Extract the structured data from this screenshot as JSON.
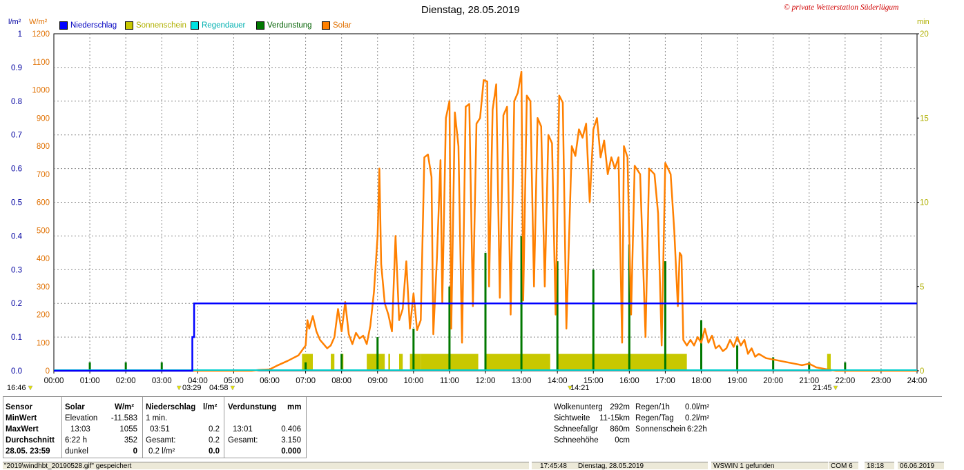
{
  "title": "Dienstag, 28.05.2019",
  "copyright": "© private Wetterstation Süderlügum",
  "axes": {
    "left1_unit": "l/m²",
    "left2_unit": "W/m²",
    "right_unit": "min",
    "left1_ticks": [
      "0.0",
      "0.1",
      "0.2",
      "0.3",
      "0.4",
      "0.5",
      "0.6",
      "0.7",
      "0.8",
      "0.9",
      "1"
    ],
    "left2_ticks": [
      "0",
      "100",
      "200",
      "300",
      "400",
      "500",
      "600",
      "700",
      "800",
      "900",
      "1000",
      "1100",
      "1200"
    ],
    "right_ticks": [
      "0",
      "5",
      "10",
      "15",
      "20"
    ],
    "x_ticks": [
      "00:00",
      "01:00",
      "02:00",
      "03:00",
      "04:00",
      "05:00",
      "06:00",
      "07:00",
      "08:00",
      "09:00",
      "10:00",
      "11:00",
      "12:00",
      "13:00",
      "14:00",
      "15:00",
      "16:00",
      "17:00",
      "18:00",
      "19:00",
      "20:00",
      "21:00",
      "22:00",
      "23:00",
      "24:00"
    ]
  },
  "legend": [
    {
      "label": "Niederschlag",
      "color": "#0000ff"
    },
    {
      "label": "Sonnenschein",
      "color": "#c8c800"
    },
    {
      "label": "Regendauer",
      "color": "#00e0e0"
    },
    {
      "label": "Verdunstung",
      "color": "#007800"
    },
    {
      "label": "Solar",
      "color": "#ff8000"
    }
  ],
  "markers": {
    "sunset_prev": "16:46",
    "t1": "03:29",
    "t2": "04:58",
    "t3": "14:21",
    "t4": "21:45"
  },
  "chart_data": {
    "type": "line",
    "x_unit": "hours",
    "xlim": [
      0,
      24
    ],
    "series": [
      {
        "name": "Solar",
        "axis": "W/m²",
        "ylim": [
          0,
          1200
        ],
        "points": [
          [
            0,
            0
          ],
          [
            5.5,
            0
          ],
          [
            5.7,
            3
          ],
          [
            6.0,
            5
          ],
          [
            6.2,
            18
          ],
          [
            6.5,
            35
          ],
          [
            6.8,
            55
          ],
          [
            7.0,
            90
          ],
          [
            7.05,
            180
          ],
          [
            7.1,
            150
          ],
          [
            7.2,
            195
          ],
          [
            7.3,
            140
          ],
          [
            7.4,
            110
          ],
          [
            7.5,
            95
          ],
          [
            7.6,
            80
          ],
          [
            7.7,
            90
          ],
          [
            7.8,
            120
          ],
          [
            7.9,
            220
          ],
          [
            8.0,
            140
          ],
          [
            8.1,
            245
          ],
          [
            8.2,
            130
          ],
          [
            8.3,
            95
          ],
          [
            8.4,
            135
          ],
          [
            8.5,
            115
          ],
          [
            8.6,
            125
          ],
          [
            8.7,
            95
          ],
          [
            8.8,
            160
          ],
          [
            8.9,
            280
          ],
          [
            9.0,
            480
          ],
          [
            9.05,
            720
          ],
          [
            9.1,
            380
          ],
          [
            9.2,
            240
          ],
          [
            9.3,
            200
          ],
          [
            9.4,
            140
          ],
          [
            9.5,
            480
          ],
          [
            9.6,
            180
          ],
          [
            9.7,
            220
          ],
          [
            9.8,
            390
          ],
          [
            9.9,
            150
          ],
          [
            10.0,
            275
          ],
          [
            10.1,
            145
          ],
          [
            10.2,
            180
          ],
          [
            10.3,
            760
          ],
          [
            10.4,
            770
          ],
          [
            10.5,
            690
          ],
          [
            10.55,
            130
          ],
          [
            10.65,
            400
          ],
          [
            10.75,
            750
          ],
          [
            10.8,
            240
          ],
          [
            10.9,
            900
          ],
          [
            11.0,
            960
          ],
          [
            11.05,
            150
          ],
          [
            11.15,
            920
          ],
          [
            11.25,
            800
          ],
          [
            11.35,
            100
          ],
          [
            11.45,
            940
          ],
          [
            11.55,
            950
          ],
          [
            11.65,
            230
          ],
          [
            11.75,
            880
          ],
          [
            11.85,
            900
          ],
          [
            11.95,
            1035
          ],
          [
            12.05,
            1030
          ],
          [
            12.1,
            300
          ],
          [
            12.2,
            930
          ],
          [
            12.3,
            1020
          ],
          [
            12.4,
            260
          ],
          [
            12.5,
            910
          ],
          [
            12.6,
            940
          ],
          [
            12.7,
            200
          ],
          [
            12.8,
            960
          ],
          [
            12.9,
            990
          ],
          [
            13.0,
            1065
          ],
          [
            13.05,
            250
          ],
          [
            13.15,
            980
          ],
          [
            13.25,
            960
          ],
          [
            13.35,
            300
          ],
          [
            13.45,
            900
          ],
          [
            13.55,
            870
          ],
          [
            13.65,
            300
          ],
          [
            13.75,
            840
          ],
          [
            13.85,
            810
          ],
          [
            13.95,
            200
          ],
          [
            14.05,
            980
          ],
          [
            14.15,
            955
          ],
          [
            14.25,
            150
          ],
          [
            14.4,
            800
          ],
          [
            14.5,
            765
          ],
          [
            14.6,
            860
          ],
          [
            14.7,
            830
          ],
          [
            14.8,
            880
          ],
          [
            14.9,
            600
          ],
          [
            15.0,
            860
          ],
          [
            15.1,
            900
          ],
          [
            15.2,
            760
          ],
          [
            15.3,
            820
          ],
          [
            15.4,
            700
          ],
          [
            15.5,
            760
          ],
          [
            15.6,
            720
          ],
          [
            15.7,
            760
          ],
          [
            15.8,
            100
          ],
          [
            15.85,
            800
          ],
          [
            15.95,
            760
          ],
          [
            16.05,
            200
          ],
          [
            16.15,
            730
          ],
          [
            16.3,
            700
          ],
          [
            16.45,
            120
          ],
          [
            16.55,
            720
          ],
          [
            16.7,
            700
          ],
          [
            16.8,
            560
          ],
          [
            16.9,
            90
          ],
          [
            17.0,
            740
          ],
          [
            17.15,
            700
          ],
          [
            17.25,
            500
          ],
          [
            17.35,
            230
          ],
          [
            17.4,
            420
          ],
          [
            17.45,
            410
          ],
          [
            17.5,
            110
          ],
          [
            17.6,
            90
          ],
          [
            17.7,
            110
          ],
          [
            17.8,
            90
          ],
          [
            17.9,
            120
          ],
          [
            18.0,
            100
          ],
          [
            18.1,
            150
          ],
          [
            18.2,
            100
          ],
          [
            18.3,
            125
          ],
          [
            18.4,
            80
          ],
          [
            18.5,
            90
          ],
          [
            18.6,
            70
          ],
          [
            18.7,
            80
          ],
          [
            18.8,
            110
          ],
          [
            18.9,
            85
          ],
          [
            19.0,
            120
          ],
          [
            19.1,
            90
          ],
          [
            19.2,
            110
          ],
          [
            19.3,
            60
          ],
          [
            19.4,
            80
          ],
          [
            19.5,
            50
          ],
          [
            19.6,
            60
          ],
          [
            19.8,
            45
          ],
          [
            20.0,
            40
          ],
          [
            20.2,
            35
          ],
          [
            20.4,
            30
          ],
          [
            20.6,
            25
          ],
          [
            20.8,
            20
          ],
          [
            21.0,
            25
          ],
          [
            21.2,
            12
          ],
          [
            21.5,
            5
          ],
          [
            21.75,
            0
          ],
          [
            24,
            0
          ]
        ]
      },
      {
        "name": "Niederschlag",
        "axis": "l/m²",
        "ylim": [
          0,
          1
        ],
        "points": [
          [
            0,
            0
          ],
          [
            3.85,
            0
          ],
          [
            3.85,
            0.1
          ],
          [
            3.9,
            0.1
          ],
          [
            3.9,
            0.2
          ],
          [
            24,
            0.2
          ]
        ]
      },
      {
        "name": "Verdunstung",
        "axis": "min",
        "type": "bar",
        "ylim": [
          0,
          20
        ],
        "x": [
          1.0,
          2.0,
          3.0,
          7.0,
          8.0,
          9.0,
          10.0,
          11.0,
          12.0,
          13.0,
          14.0,
          15.0,
          16.0,
          17.0,
          18.0,
          19.0,
          20.0,
          21.0,
          22.0
        ],
        "values": [
          0.5,
          0.5,
          0.5,
          0.5,
          1.0,
          2.0,
          2.5,
          5.0,
          7.0,
          8.0,
          6.5,
          6.0,
          7.5,
          6.5,
          3.0,
          1.5,
          0.8,
          0.5,
          0.5
        ]
      },
      {
        "name": "Sonnenschein",
        "axis": "min",
        "type": "bar",
        "ylim": [
          0,
          20
        ],
        "segments": [
          [
            6.9,
            7.2
          ],
          [
            7.7,
            7.8
          ],
          [
            8.0,
            8.05
          ],
          [
            8.7,
            9.2
          ],
          [
            9.3,
            9.35
          ],
          [
            9.6,
            9.7
          ],
          [
            9.9,
            10.2
          ],
          [
            10.2,
            11.8
          ],
          [
            12.0,
            13.8
          ],
          [
            14.0,
            17.6
          ],
          [
            21.5,
            21.6
          ]
        ],
        "value": 1
      }
    ]
  },
  "stats": {
    "headers": {
      "sensor": "Sensor",
      "solar": "Solar",
      "solar_unit": "W/m²",
      "niederschlag": "Niederschlag",
      "niederschlag_unit": "l/m²",
      "verdunstung": "Verdunstung",
      "verdunstung_unit": "mm"
    },
    "rows": [
      {
        "label": "MinWert",
        "solar_a": "Elevation",
        "solar_b": "-11.583",
        "n_a": "1 min.",
        "n_b": "",
        "v_a": "",
        "v_b": ""
      },
      {
        "label": "MaxWert",
        "solar_a": "13:03",
        "solar_b": "1055",
        "n_a": "03:51",
        "n_b": "0.2",
        "v_a": "13:01",
        "v_b": "0.406"
      },
      {
        "label": "Durchschnitt",
        "solar_a": "6:22 h",
        "solar_b": "352",
        "n_a": "Gesamt:",
        "n_b": "0.2",
        "v_a": "Gesamt:",
        "v_b": "3.150"
      },
      {
        "label": "28.05. 23:59",
        "solar_a": "dunkel",
        "solar_b": "0",
        "n_a": "0.2 l/m²",
        "n_b": "0.0",
        "v_a": "",
        "v_b": "0.000"
      }
    ],
    "right": [
      {
        "k": "Wolkenunterg",
        "v": "292m"
      },
      {
        "k": "Sichtweite",
        "v": "11-15km"
      },
      {
        "k": "Schneefallgr",
        "v": "860m"
      },
      {
        "k": "Schneehöhe",
        "v": "0cm"
      }
    ],
    "right2": [
      {
        "k": "Regen/1h",
        "v": "0.0l/m²"
      },
      {
        "k": "Regen/Tag",
        "v": "0.2l/m²"
      },
      {
        "k": "Sonnenschein",
        "v": "6:22h"
      }
    ]
  },
  "statusbar": {
    "file": "\"2019\\windhbt_20190528.gif\" gespeichert",
    "time": "17:45:48",
    "date": "Dienstag, 28.05.2019",
    "device": "WSWIN 1 gefunden",
    "com": "COM 6",
    "clock": "18:18",
    "today": "06.06.2019"
  }
}
